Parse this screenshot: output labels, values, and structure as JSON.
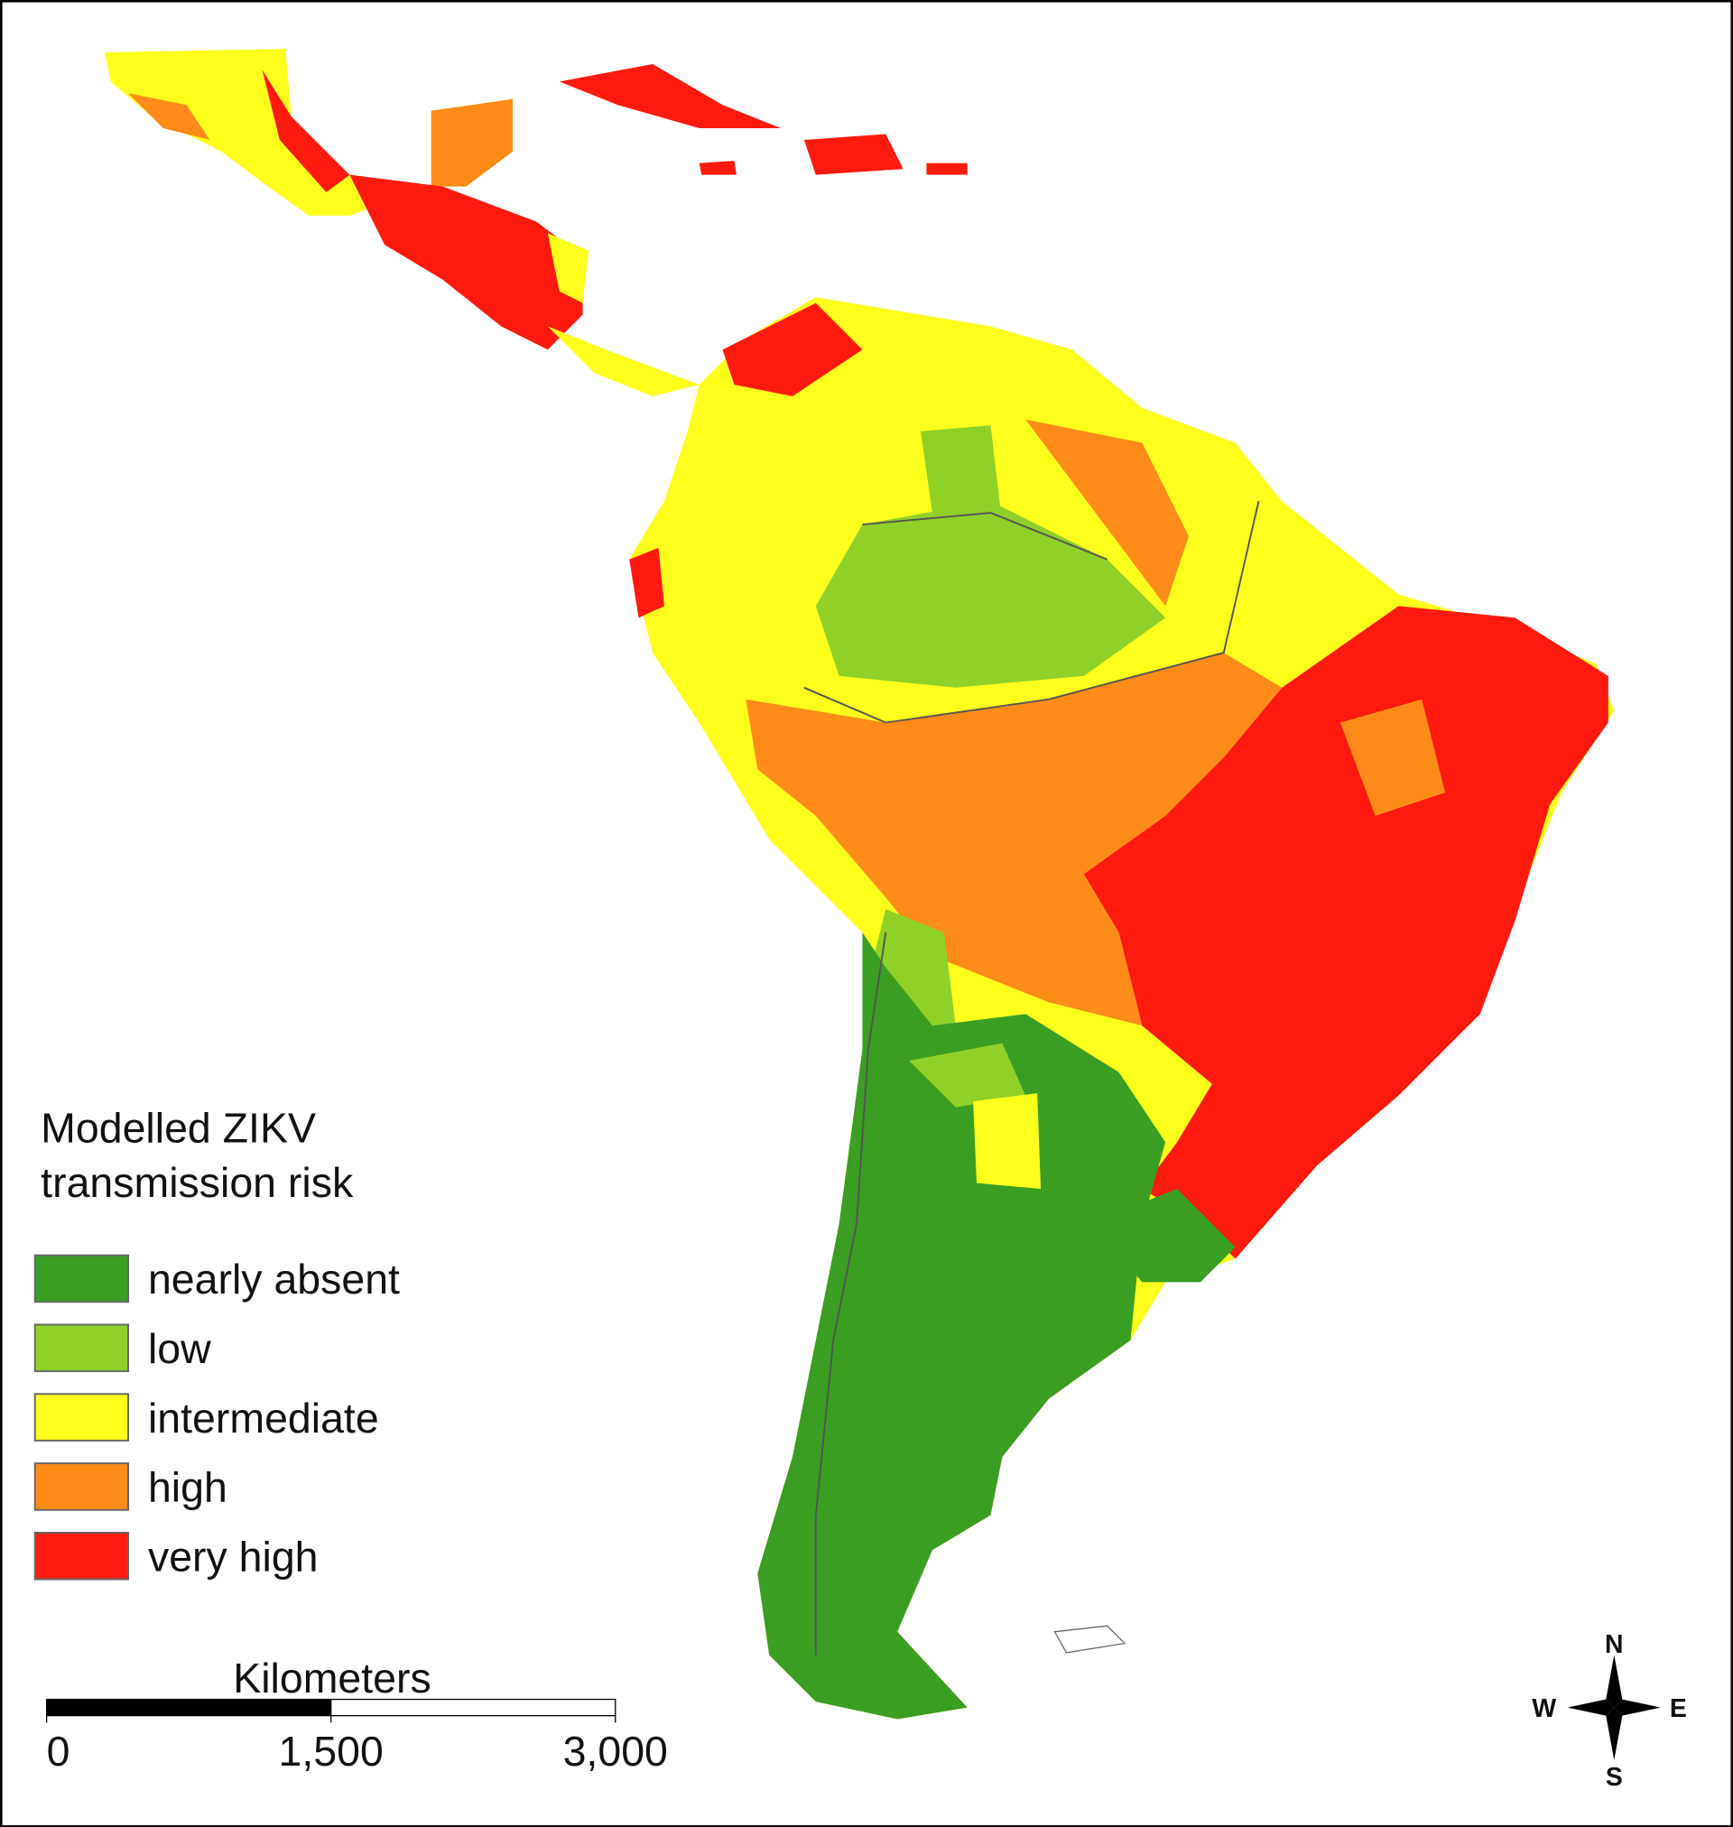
{
  "legend": {
    "title_lines": [
      "Modelled ZIKV",
      "transmission risk"
    ],
    "items": [
      {
        "label": "nearly absent",
        "color": "#3a9e22"
      },
      {
        "label": "low",
        "color": "#8fd128"
      },
      {
        "label": "intermediate",
        "color": "#ffff1e"
      },
      {
        "label": "high",
        "color": "#ff8c19"
      },
      {
        "label": "very high",
        "color": "#ff1a0f"
      }
    ]
  },
  "scale_bar": {
    "title": "Kilometers",
    "max": 3000,
    "ticks": [
      0,
      {
        "value": 1500,
        "label": "1,500"
      },
      {
        "value": 3000,
        "label": "3,000"
      }
    ]
  },
  "compass": {
    "n": "N",
    "s": "S",
    "w": "W",
    "e": "E"
  }
}
